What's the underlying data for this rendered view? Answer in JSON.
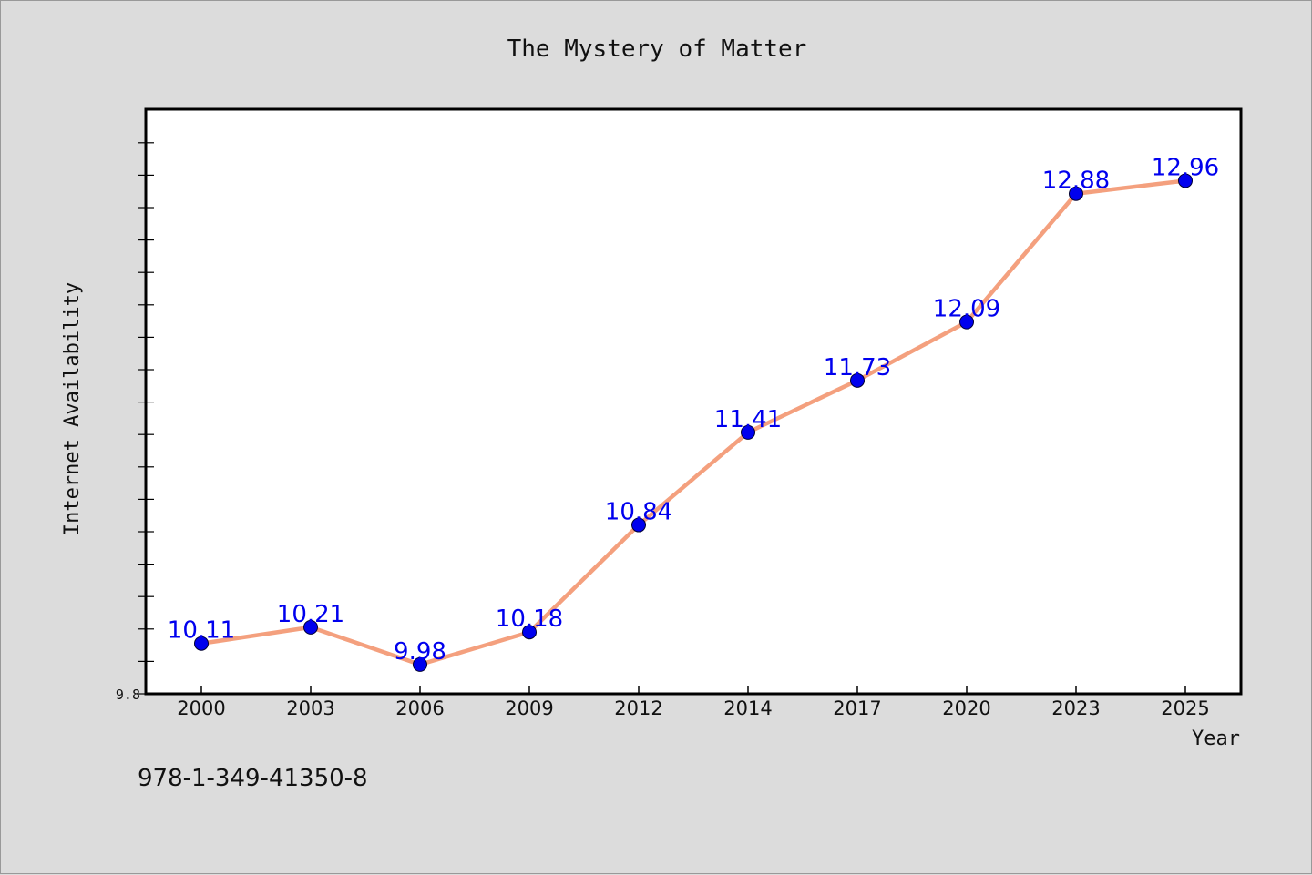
{
  "footer": {
    "isbn": "978-1-349-41350-8"
  },
  "chart_data": {
    "type": "line",
    "title": "The Mystery of Matter",
    "xlabel": "Year",
    "ylabel": "Internet Availability",
    "categories": [
      "2000",
      "2003",
      "2006",
      "2009",
      "2012",
      "2014",
      "2017",
      "2020",
      "2023",
      "2025"
    ],
    "series": [
      {
        "values": [
          10.11,
          10.21,
          9.98,
          10.18,
          10.84,
          11.41,
          11.73,
          12.09,
          12.88,
          12.96
        ]
      }
    ],
    "ylim": [
      9.8,
      13.4
    ],
    "y_tick_labels": [
      "9.8"
    ],
    "line_color": "#f4a07e",
    "marker_color": "#0000ee",
    "label_color": "#0000ee",
    "grid": false,
    "legend": "none"
  }
}
